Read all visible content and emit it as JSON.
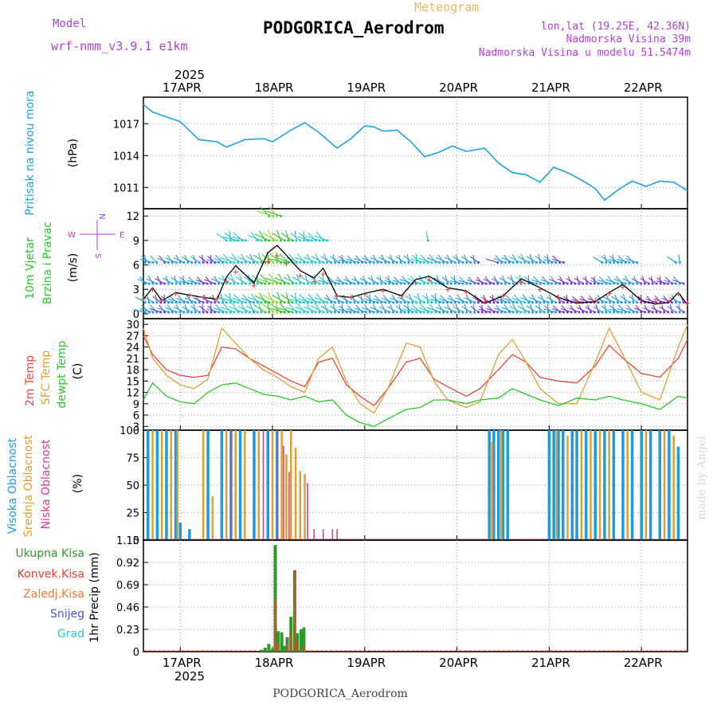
{
  "header": {
    "model_label": "Model",
    "model_name": "wrf-nmm_v3.9.1 e1km",
    "meteogram_label": "Meteogram",
    "station": "PODGORICA_Aerodrom",
    "lonlat": "lon,lat (19.25E, 42.36N)",
    "elevation": "Nadmorska Visina 39m",
    "elevation_model": "Nadmorska Visina u modelu 51.5474m",
    "footer_station": "PODGORICA_Aerodrom",
    "credit": "made by Angel"
  },
  "colors": {
    "pressure": "#1ea0e6",
    "temp2m": "#e8463c",
    "sfc_temp": "#e0a030",
    "dewpoint": "#28c828",
    "high_cloud": "#1e9be0",
    "mid_cloud": "#e0a030",
    "low_cloud": "#d03c90",
    "total_precip": "#2a9a2a",
    "conv_precip": "#e84030",
    "model_purple": "#b040d8"
  },
  "time_axis": {
    "year": "2025",
    "day_labels": [
      "17APR",
      "18APR",
      "19APR",
      "20APR",
      "21APR",
      "22APR"
    ],
    "start_day": 16.6,
    "end_day": 22.5
  },
  "chart_data": [
    {
      "type": "line",
      "name": "pressure",
      "ylabel_side": "Pritisak na nivou mora",
      "ylabel_unit": "(hPa)",
      "yticks": [
        "1017",
        "1014",
        "1011"
      ],
      "ylim": [
        1009,
        1019.5
      ],
      "grid": true,
      "series": [
        {
          "name": "Pritisak na nivou mora",
          "x": [
            16.6,
            16.7,
            16.8,
            17.0,
            17.2,
            17.4,
            17.5,
            17.7,
            17.9,
            18.0,
            18.2,
            18.35,
            18.5,
            18.7,
            18.85,
            19.0,
            19.1,
            19.2,
            19.35,
            19.5,
            19.65,
            19.8,
            19.95,
            20.1,
            20.3,
            20.45,
            20.6,
            20.75,
            20.9,
            21.05,
            21.2,
            21.35,
            21.5,
            21.6,
            21.75,
            21.9,
            22.05,
            22.2,
            22.35,
            22.5
          ],
          "values": [
            1018.8,
            1018.1,
            1017.8,
            1017.2,
            1015.5,
            1015.3,
            1014.8,
            1015.5,
            1015.6,
            1015.3,
            1016.4,
            1017.1,
            1016.2,
            1014.7,
            1015.6,
            1016.8,
            1016.7,
            1016.3,
            1016.4,
            1015.3,
            1013.9,
            1014.3,
            1014.9,
            1014.4,
            1014.7,
            1013.3,
            1012.4,
            1012.2,
            1011.5,
            1012.9,
            1012.4,
            1011.7,
            1010.9,
            1009.8,
            1010.8,
            1011.6,
            1011.1,
            1011.6,
            1011.5,
            1010.7
          ]
        }
      ]
    },
    {
      "type": "line",
      "name": "wind",
      "ylabel_side_1": "10m Vjetar",
      "ylabel_side_2": "Brzina i Pravac",
      "ylabel_unit": "(m/s)",
      "compass": "N",
      "compass_w": "W",
      "compass_e": "E",
      "compass_s": "S",
      "yticks": [
        "12",
        "9",
        "6",
        "3",
        "0"
      ],
      "ylim": [
        -0.6,
        12.9
      ],
      "grid": true,
      "series": [
        {
          "name": "10m Vjetar",
          "x": [
            16.6,
            16.7,
            16.8,
            16.95,
            17.1,
            17.25,
            17.4,
            17.5,
            17.6,
            17.8,
            17.95,
            18.05,
            18.15,
            18.3,
            18.45,
            18.55,
            18.7,
            18.85,
            19.0,
            19.2,
            19.4,
            19.55,
            19.7,
            19.9,
            20.1,
            20.3,
            20.5,
            20.7,
            20.9,
            21.1,
            21.3,
            21.5,
            21.65,
            21.8,
            22.0,
            22.15,
            22.3,
            22.4,
            22.5
          ],
          "values": [
            1.8,
            3.2,
            1.6,
            2.6,
            2.3,
            2.0,
            1.8,
            4.5,
            5.9,
            3.8,
            7.5,
            8.4,
            7.2,
            5.3,
            4.4,
            5.6,
            2.2,
            2.0,
            2.5,
            3.0,
            2.2,
            4.2,
            4.6,
            3.2,
            2.8,
            1.3,
            2.2,
            4.3,
            3.2,
            2.0,
            1.3,
            1.5,
            2.6,
            3.6,
            1.6,
            1.2,
            1.4,
            2.6,
            1.1
          ]
        }
      ]
    },
    {
      "type": "line",
      "name": "temperature",
      "ylabel_side_1": "2m Temp",
      "ylabel_side_2": "SFC Temp",
      "ylabel_side_3": "dewpt Temp",
      "ylabel_unit": "(C)",
      "yticks": [
        "30",
        "27",
        "24",
        "21",
        "18",
        "15",
        "12",
        "9",
        "6",
        "3"
      ],
      "ylim": [
        2,
        31.5
      ],
      "grid": true,
      "x": [
        16.6,
        16.7,
        16.85,
        17.0,
        17.15,
        17.3,
        17.45,
        17.6,
        17.75,
        17.9,
        18.05,
        18.2,
        18.35,
        18.5,
        18.65,
        18.8,
        18.95,
        19.1,
        19.25,
        19.45,
        19.6,
        19.75,
        19.9,
        20.1,
        20.25,
        20.45,
        20.6,
        20.75,
        20.9,
        21.1,
        21.3,
        21.5,
        21.65,
        21.8,
        22.0,
        22.2,
        22.4,
        22.5
      ],
      "series": [
        {
          "name": "2m Temp",
          "values": [
            27,
            22,
            18,
            16.5,
            16,
            16.5,
            24,
            23.5,
            21,
            19,
            17,
            15,
            13.5,
            20,
            21,
            14,
            11,
            8.5,
            13,
            20,
            21,
            15.5,
            13.5,
            11,
            13,
            18,
            22,
            20,
            16,
            15,
            14.5,
            19,
            24.5,
            21,
            17,
            16,
            21,
            26
          ]
        },
        {
          "name": "SFC Temp",
          "values": [
            29,
            21,
            16.5,
            14,
            13,
            15.5,
            29,
            25,
            21,
            18,
            16,
            13.5,
            12,
            21,
            24,
            15,
            9,
            6.5,
            13,
            25,
            24,
            15,
            10,
            8,
            9.5,
            22,
            26,
            20,
            13,
            9,
            9,
            20,
            29,
            22,
            12,
            10,
            24,
            30
          ]
        },
        {
          "name": "dewpt Temp",
          "values": [
            10,
            14.5,
            11,
            9.5,
            9,
            12,
            14,
            14.5,
            13,
            11.5,
            11,
            10,
            11,
            9.5,
            10,
            6,
            4,
            3,
            5,
            7.5,
            8,
            10,
            10,
            9,
            10,
            10.5,
            13,
            11.5,
            10,
            8.5,
            10.5,
            10,
            11,
            10,
            9,
            7.5,
            11,
            10.5
          ]
        }
      ]
    },
    {
      "type": "bar",
      "name": "cloud",
      "ylabel_side_1": "Visoka Oblacnost",
      "ylabel_side_2": "Srednja Oblacnost",
      "ylabel_side_3": "Niska Oblacnost",
      "ylabel_unit": "(%)",
      "yticks": [
        "100",
        "75",
        "50",
        "25",
        "0"
      ],
      "ylim": [
        0,
        100
      ],
      "grid": true,
      "series": [
        {
          "name": "Visoka Oblacnost",
          "x": [
            16.65,
            16.75,
            16.85,
            16.95,
            17.0,
            17.1,
            17.3,
            17.45,
            17.55,
            17.65,
            17.8,
            17.95,
            18.05,
            20.35,
            20.4,
            20.45,
            20.5,
            20.55,
            21.0,
            21.05,
            21.1,
            21.15,
            21.25,
            21.3,
            21.4,
            21.5,
            21.6,
            21.7,
            21.8,
            21.9,
            22.0,
            22.1,
            22.2,
            22.3,
            22.4
          ],
          "values": [
            100,
            100,
            100,
            100,
            16,
            10,
            100,
            100,
            100,
            100,
            100,
            100,
            100,
            100,
            100,
            100,
            100,
            100,
            100,
            100,
            100,
            100,
            100,
            100,
            100,
            100,
            100,
            100,
            100,
            100,
            100,
            100,
            100,
            100,
            85
          ]
        },
        {
          "name": "Srednja Oblacnost",
          "x": [
            16.7,
            16.8,
            16.9,
            16.97,
            17.25,
            17.35,
            17.5,
            17.6,
            17.7,
            17.85,
            18.0,
            18.1,
            18.15,
            18.2,
            18.25,
            18.3,
            18.35,
            20.38,
            20.48,
            21.08,
            21.2,
            21.35,
            21.45,
            21.55,
            21.65,
            21.85,
            22.05,
            22.25,
            22.35
          ],
          "values": [
            100,
            100,
            100,
            100,
            100,
            40,
            100,
            100,
            100,
            100,
            100,
            100,
            78,
            100,
            84,
            63,
            60,
            90,
            100,
            100,
            95,
            100,
            100,
            100,
            100,
            100,
            100,
            100,
            95
          ]
        },
        {
          "name": "Niska Oblacnost",
          "x": [
            17.55,
            17.9,
            18.05,
            18.12,
            18.18,
            18.38,
            18.45,
            18.55,
            18.65,
            18.7
          ],
          "values": [
            100,
            100,
            100,
            86,
            62,
            52,
            10,
            10,
            10,
            10
          ]
        }
      ]
    },
    {
      "type": "bar",
      "name": "precip",
      "ylabel_unit": "1hr Precip (mm)",
      "legend": [
        "Ukupna Kisa",
        "Konvek.Kisa",
        "Zaledj.Kisa",
        "Snijeg",
        "Grad"
      ],
      "legend_colors": [
        "#2a9a2a",
        "#e84030",
        "#f07a30",
        "#5050e0",
        "#30c8c8"
      ],
      "yticks": [
        "1.15",
        "0.92",
        "0.69",
        "0.46",
        "0.23",
        "0"
      ],
      "ylim": [
        0,
        1.15
      ],
      "grid": true,
      "series": [
        {
          "name": "Ukupna Kisa",
          "x": [
            17.88,
            17.92,
            17.96,
            18.0,
            18.03,
            18.06,
            18.1,
            18.13,
            18.16,
            18.2,
            18.24,
            18.27,
            18.31,
            18.34
          ],
          "values": [
            0.02,
            0.04,
            0.08,
            0.03,
            1.1,
            0.21,
            0.2,
            0.06,
            0.15,
            0.36,
            0.84,
            0.19,
            0.23,
            0.25
          ]
        },
        {
          "name": "Konvek.Kisa",
          "x": [
            18.03,
            18.06,
            18.16,
            18.2,
            18.24,
            18.27,
            18.34
          ],
          "values": [
            0.55,
            0.08,
            0.07,
            0.2,
            0.84,
            0.1,
            0.07
          ]
        }
      ]
    }
  ]
}
